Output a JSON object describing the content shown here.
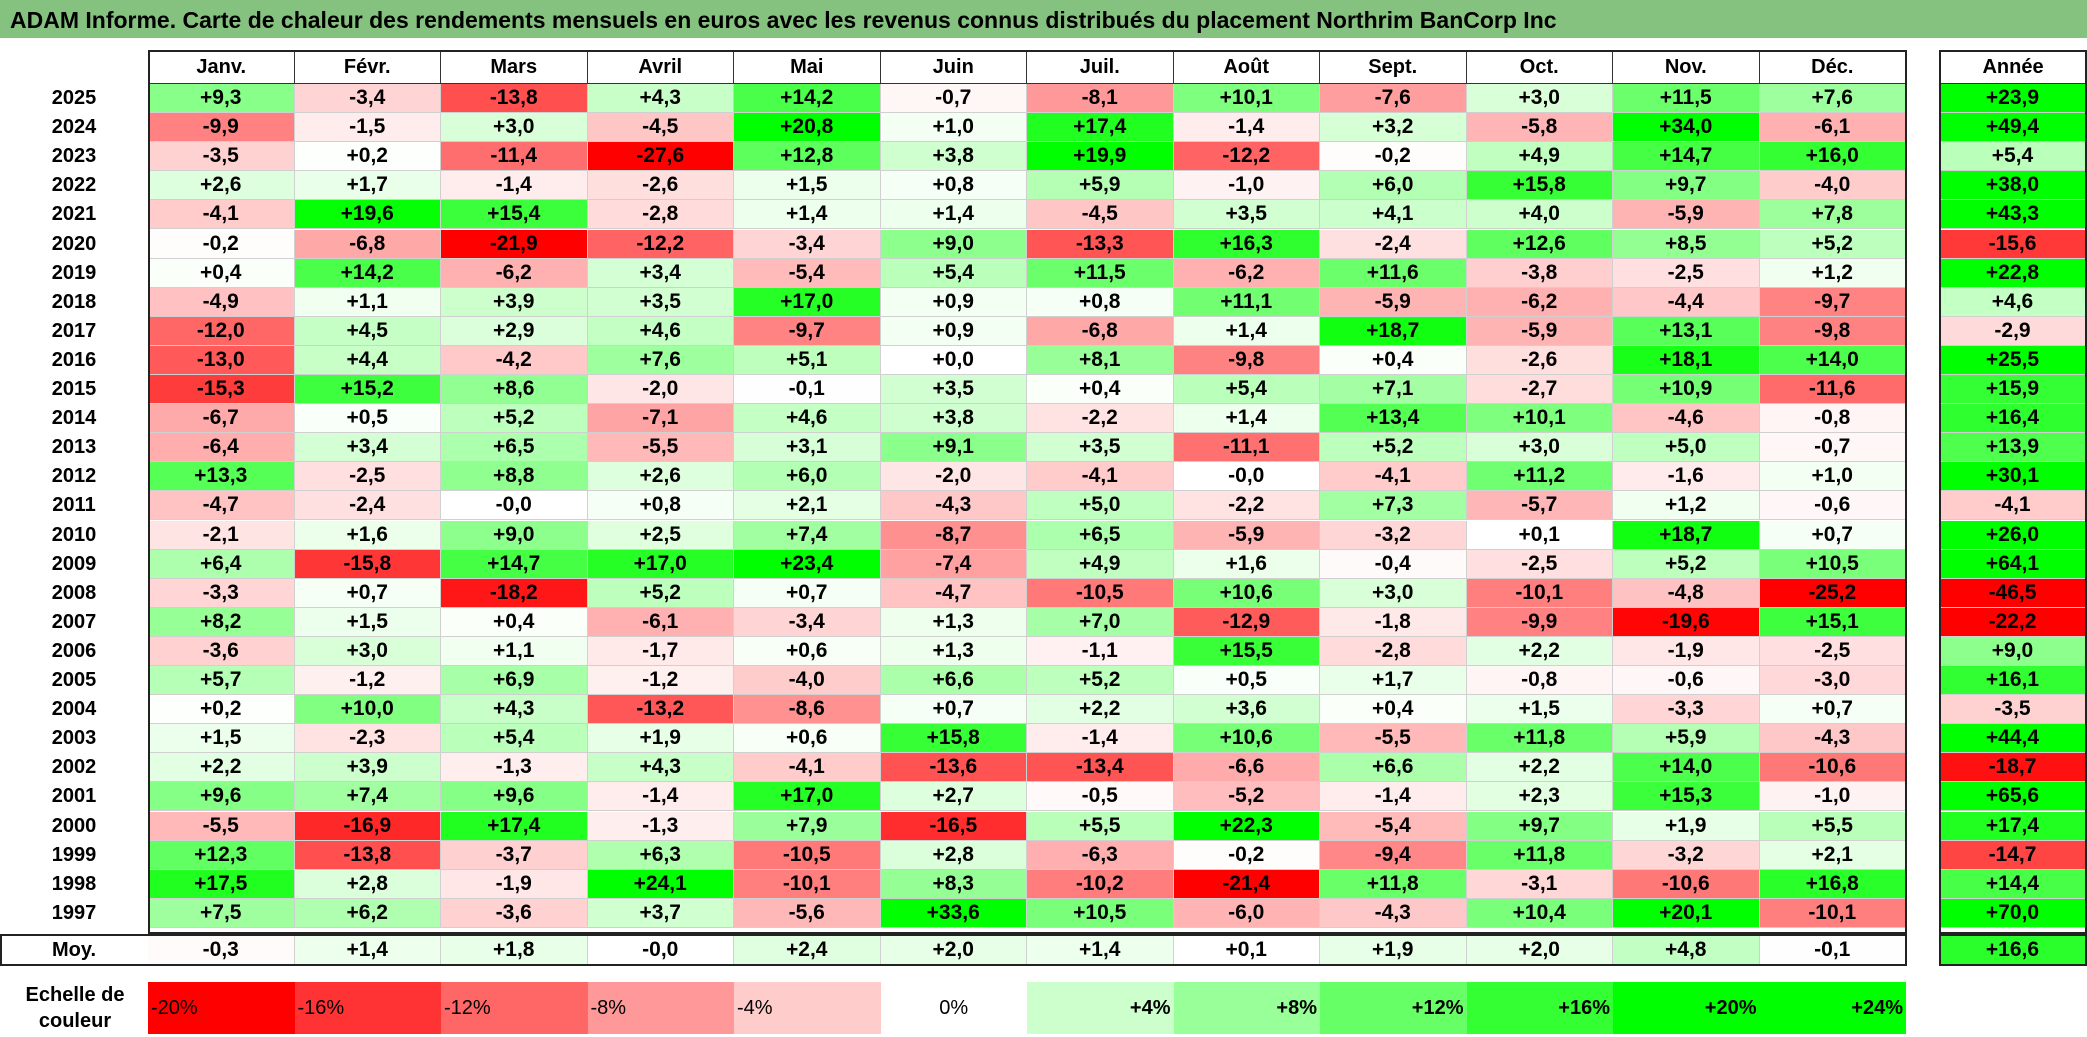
{
  "title": "ADAM Informe. Carte de chaleur des rendements mensuels en euros avec les revenus connus distribués du placement Northrim BanCorp Inc",
  "chart_data": {
    "type": "heatmap",
    "title": "ADAM Informe. Carte de chaleur des rendements mensuels en euros avec les revenus connus distribués du placement Northrim BanCorp Inc",
    "columns": [
      "Janv.",
      "Févr.",
      "Mars",
      "Avril",
      "Mai",
      "Juin",
      "Juil.",
      "Août",
      "Sept.",
      "Oct.",
      "Nov.",
      "Déc."
    ],
    "annual_header": "Année",
    "average_label": "Moy.",
    "rows": [
      {
        "year": "2025",
        "values": [
          "+9,3",
          "-3,4",
          "-13,8",
          "+4,3",
          "+14,2",
          "-0,7",
          "-8,1",
          "+10,1",
          "-7,6",
          "+3,0",
          "+11,5",
          "+7,6"
        ],
        "annual": "+23,9"
      },
      {
        "year": "2024",
        "values": [
          "-9,9",
          "-1,5",
          "+3,0",
          "-4,5",
          "+20,8",
          "+1,0",
          "+17,4",
          "-1,4",
          "+3,2",
          "-5,8",
          "+34,0",
          "-6,1"
        ],
        "annual": "+49,4"
      },
      {
        "year": "2023",
        "values": [
          "-3,5",
          "+0,2",
          "-11,4",
          "-27,6",
          "+12,8",
          "+3,8",
          "+19,9",
          "-12,2",
          "-0,2",
          "+4,9",
          "+14,7",
          "+16,0"
        ],
        "annual": "+5,4"
      },
      {
        "year": "2022",
        "values": [
          "+2,6",
          "+1,7",
          "-1,4",
          "-2,6",
          "+1,5",
          "+0,8",
          "+5,9",
          "-1,0",
          "+6,0",
          "+15,8",
          "+9,7",
          "-4,0"
        ],
        "annual": "+38,0"
      },
      {
        "year": "2021",
        "values": [
          "-4,1",
          "+19,6",
          "+15,4",
          "-2,8",
          "+1,4",
          "+1,4",
          "-4,5",
          "+3,5",
          "+4,1",
          "+4,0",
          "-5,9",
          "+7,8"
        ],
        "annual": "+43,3"
      },
      {
        "year": "2020",
        "values": [
          "-0,2",
          "-6,8",
          "-21,9",
          "-12,2",
          "-3,4",
          "+9,0",
          "-13,3",
          "+16,3",
          "-2,4",
          "+12,6",
          "+8,5",
          "+5,2"
        ],
        "annual": "-15,6"
      },
      {
        "year": "2019",
        "values": [
          "+0,4",
          "+14,2",
          "-6,2",
          "+3,4",
          "-5,4",
          "+5,4",
          "+11,5",
          "-6,2",
          "+11,6",
          "-3,8",
          "-2,5",
          "+1,2"
        ],
        "annual": "+22,8"
      },
      {
        "year": "2018",
        "values": [
          "-4,9",
          "+1,1",
          "+3,9",
          "+3,5",
          "+17,0",
          "+0,9",
          "+0,8",
          "+11,1",
          "-5,9",
          "-6,2",
          "-4,4",
          "-9,7"
        ],
        "annual": "+4,6"
      },
      {
        "year": "2017",
        "values": [
          "-12,0",
          "+4,5",
          "+2,9",
          "+4,6",
          "-9,7",
          "+0,9",
          "-6,8",
          "+1,4",
          "+18,7",
          "-5,9",
          "+13,1",
          "-9,8"
        ],
        "annual": "-2,9"
      },
      {
        "year": "2016",
        "values": [
          "-13,0",
          "+4,4",
          "-4,2",
          "+7,6",
          "+5,1",
          "+0,0",
          "+8,1",
          "-9,8",
          "+0,4",
          "-2,6",
          "+18,1",
          "+14,0"
        ],
        "annual": "+25,5"
      },
      {
        "year": "2015",
        "values": [
          "-15,3",
          "+15,2",
          "+8,6",
          "-2,0",
          "-0,1",
          "+3,5",
          "+0,4",
          "+5,4",
          "+7,1",
          "-2,7",
          "+10,9",
          "-11,6"
        ],
        "annual": "+15,9"
      },
      {
        "year": "2014",
        "values": [
          "-6,7",
          "+0,5",
          "+5,2",
          "-7,1",
          "+4,6",
          "+3,8",
          "-2,2",
          "+1,4",
          "+13,4",
          "+10,1",
          "-4,6",
          "-0,8"
        ],
        "annual": "+16,4"
      },
      {
        "year": "2013",
        "values": [
          "-6,4",
          "+3,4",
          "+6,5",
          "-5,5",
          "+3,1",
          "+9,1",
          "+3,5",
          "-11,1",
          "+5,2",
          "+3,0",
          "+5,0",
          "-0,7"
        ],
        "annual": "+13,9"
      },
      {
        "year": "2012",
        "values": [
          "+13,3",
          "-2,5",
          "+8,8",
          "+2,6",
          "+6,0",
          "-2,0",
          "-4,1",
          "-0,0",
          "-4,1",
          "+11,2",
          "-1,6",
          "+1,0"
        ],
        "annual": "+30,1"
      },
      {
        "year": "2011",
        "values": [
          "-4,7",
          "-2,4",
          "-0,0",
          "+0,8",
          "+2,1",
          "-4,3",
          "+5,0",
          "-2,2",
          "+7,3",
          "-5,7",
          "+1,2",
          "-0,6"
        ],
        "annual": "-4,1"
      },
      {
        "year": "2010",
        "values": [
          "-2,1",
          "+1,6",
          "+9,0",
          "+2,5",
          "+7,4",
          "-8,7",
          "+6,5",
          "-5,9",
          "-3,2",
          "+0,1",
          "+18,7",
          "+0,7"
        ],
        "annual": "+26,0"
      },
      {
        "year": "2009",
        "values": [
          "+6,4",
          "-15,8",
          "+14,7",
          "+17,0",
          "+23,4",
          "-7,4",
          "+4,9",
          "+1,6",
          "-0,4",
          "-2,5",
          "+5,2",
          "+10,5"
        ],
        "annual": "+64,1"
      },
      {
        "year": "2008",
        "values": [
          "-3,3",
          "+0,7",
          "-18,2",
          "+5,2",
          "+0,7",
          "-4,7",
          "-10,5",
          "+10,6",
          "+3,0",
          "-10,1",
          "-4,8",
          "-25,2"
        ],
        "annual": "-46,5"
      },
      {
        "year": "2007",
        "values": [
          "+8,2",
          "+1,5",
          "+0,4",
          "-6,1",
          "-3,4",
          "+1,3",
          "+7,0",
          "-12,9",
          "-1,8",
          "-9,9",
          "-19,6",
          "+15,1"
        ],
        "annual": "-22,2"
      },
      {
        "year": "2006",
        "values": [
          "-3,6",
          "+3,0",
          "+1,1",
          "-1,7",
          "+0,6",
          "+1,3",
          "-1,1",
          "+15,5",
          "-2,8",
          "+2,2",
          "-1,9",
          "-2,5"
        ],
        "annual": "+9,0"
      },
      {
        "year": "2005",
        "values": [
          "+5,7",
          "-1,2",
          "+6,9",
          "-1,2",
          "-4,0",
          "+6,6",
          "+5,2",
          "+0,5",
          "+1,7",
          "-0,8",
          "-0,6",
          "-3,0"
        ],
        "annual": "+16,1"
      },
      {
        "year": "2004",
        "values": [
          "+0,2",
          "+10,0",
          "+4,3",
          "-13,2",
          "-8,6",
          "+0,7",
          "+2,2",
          "+3,6",
          "+0,4",
          "+1,5",
          "-3,3",
          "+0,7"
        ],
        "annual": "-3,5"
      },
      {
        "year": "2003",
        "values": [
          "+1,5",
          "-2,3",
          "+5,4",
          "+1,9",
          "+0,6",
          "+15,8",
          "-1,4",
          "+10,6",
          "-5,5",
          "+11,8",
          "+5,9",
          "-4,3"
        ],
        "annual": "+44,4"
      },
      {
        "year": "2002",
        "values": [
          "+2,2",
          "+3,9",
          "-1,3",
          "+4,3",
          "-4,1",
          "-13,6",
          "-13,4",
          "-6,6",
          "+6,6",
          "+2,2",
          "+14,0",
          "-10,6"
        ],
        "annual": "-18,7"
      },
      {
        "year": "2001",
        "values": [
          "+9,6",
          "+7,4",
          "+9,6",
          "-1,4",
          "+17,0",
          "+2,7",
          "-0,5",
          "-5,2",
          "-1,4",
          "+2,3",
          "+15,3",
          "-1,0"
        ],
        "annual": "+65,6"
      },
      {
        "year": "2000",
        "values": [
          "-5,5",
          "-16,9",
          "+17,4",
          "-1,3",
          "+7,9",
          "-16,5",
          "+5,5",
          "+22,3",
          "-5,4",
          "+9,7",
          "+1,9",
          "+5,5"
        ],
        "annual": "+17,4"
      },
      {
        "year": "1999",
        "values": [
          "+12,3",
          "-13,8",
          "-3,7",
          "+6,3",
          "-10,5",
          "+2,8",
          "-6,3",
          "-0,2",
          "-9,4",
          "+11,8",
          "-3,2",
          "+2,1"
        ],
        "annual": "-14,7"
      },
      {
        "year": "1998",
        "values": [
          "+17,5",
          "+2,8",
          "-1,9",
          "+24,1",
          "-10,1",
          "+8,3",
          "-10,2",
          "-21,4",
          "+11,8",
          "-3,1",
          "-10,6",
          "+16,8"
        ],
        "annual": "+14,4"
      },
      {
        "year": "1997",
        "values": [
          "+7,5",
          "+6,2",
          "-3,6",
          "+3,7",
          "-5,6",
          "+33,6",
          "+10,5",
          "-6,0",
          "-4,3",
          "+10,4",
          "+20,1",
          "-10,1"
        ],
        "annual": "+70,0"
      }
    ],
    "average": {
      "values": [
        "-0,3",
        "+1,4",
        "+1,8",
        "-0,0",
        "+2,4",
        "+2,0",
        "+1,4",
        "+0,1",
        "+1,9",
        "+2,0",
        "+4,8",
        "-0,1"
      ],
      "annual": "+16,6"
    },
    "color_scale": {
      "label": "Echelle de couleur",
      "entries": [
        {
          "label": "-20%",
          "color": "#ff0000"
        },
        {
          "label": "-16%",
          "color": "#ff3333"
        },
        {
          "label": "-12%",
          "color": "#ff6666"
        },
        {
          "label": "-8%",
          "color": "#ff9999"
        },
        {
          "label": "-4%",
          "color": "#ffcccc"
        },
        {
          "label": "0%",
          "color": "#ffffff"
        },
        {
          "label": "+4%",
          "color": "#ccffcc"
        },
        {
          "label": "+8%",
          "color": "#99ff99"
        },
        {
          "label": "+12%",
          "color": "#66ff66"
        },
        {
          "label": "+16%",
          "color": "#33ff33"
        },
        {
          "label": "+20%",
          "color": "#00ff00"
        },
        {
          "label": "+24%",
          "color": "#00ff00"
        }
      ]
    }
  }
}
